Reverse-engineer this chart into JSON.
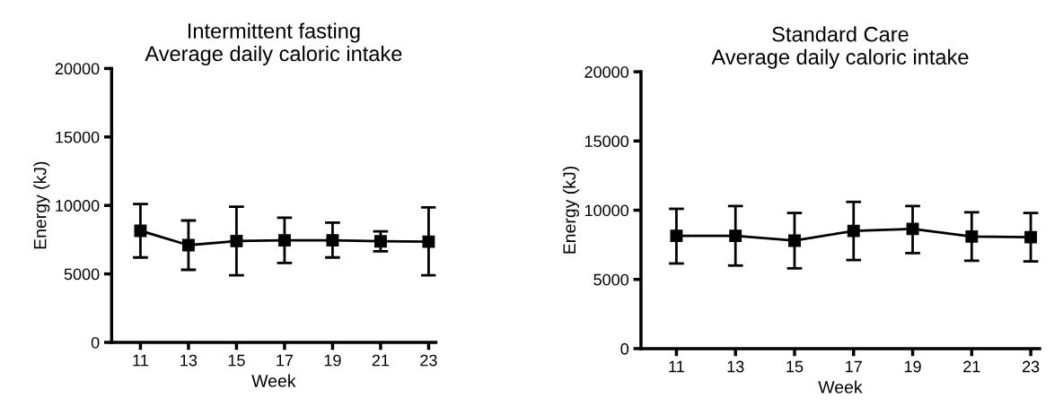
{
  "chart_data": [
    {
      "type": "line",
      "title": "Intermittent fasting\nAverage daily caloric intake",
      "xlabel": "Week",
      "ylabel": "Energy (kJ)",
      "x": [
        11,
        13,
        15,
        17,
        19,
        21,
        23
      ],
      "xlim": [
        9.8,
        23.3
      ],
      "xticks": [
        11,
        13,
        15,
        17,
        19,
        21,
        23
      ],
      "ylim": [
        0,
        20000
      ],
      "yticks": [
        0,
        5000,
        10000,
        15000,
        20000
      ],
      "marker": "square",
      "grid": false,
      "series": [
        {
          "color": "#000000",
          "values": [
            8150,
            7100,
            7400,
            7450,
            7450,
            7380,
            7350
          ],
          "errors": [
            [
              6200,
              10100
            ],
            [
              5300,
              8900
            ],
            [
              4900,
              9900
            ],
            [
              5800,
              9100
            ],
            [
              6200,
              8750
            ],
            [
              6650,
              8100
            ],
            [
              4900,
              9850
            ]
          ]
        }
      ]
    },
    {
      "type": "line",
      "title": "Standard Care\nAverage daily caloric intake",
      "xlabel": "Week",
      "ylabel": "Energy (kJ)",
      "x": [
        11,
        13,
        15,
        17,
        19,
        21,
        23
      ],
      "xlim": [
        9.8,
        23.3
      ],
      "xticks": [
        11,
        13,
        15,
        17,
        19,
        21,
        23
      ],
      "ylim": [
        0,
        20000
      ],
      "yticks": [
        0,
        5000,
        10000,
        15000,
        20000
      ],
      "marker": "square",
      "grid": false,
      "series": [
        {
          "color": "#000000",
          "values": [
            8150,
            8150,
            7800,
            8500,
            8650,
            8100,
            8050
          ],
          "errors": [
            [
              6150,
              10100
            ],
            [
              6000,
              10300
            ],
            [
              5800,
              9800
            ],
            [
              6400,
              10600
            ],
            [
              6900,
              10300
            ],
            [
              6350,
              9850
            ],
            [
              6300,
              9800
            ]
          ]
        }
      ]
    }
  ]
}
